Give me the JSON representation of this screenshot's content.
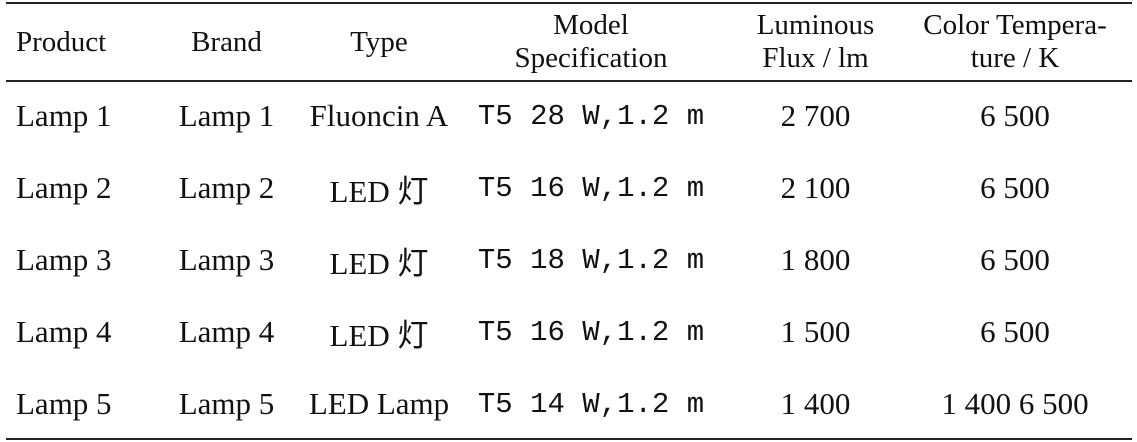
{
  "table": {
    "headers": {
      "product": "Product",
      "brand": "Brand",
      "type": "Type",
      "model_line1": "Model",
      "model_line2": "Specification",
      "flux_line1": "Luminous",
      "flux_line2": "Flux / lm",
      "temp_line1": "Color Tempera-",
      "temp_line2": "ture / K"
    },
    "rows": [
      {
        "product": "Lamp 1",
        "brand": "Lamp 1",
        "type": "Fluoncin A",
        "model": "T5 28 W,1.2 m",
        "flux": "2 700",
        "temp": "6 500"
      },
      {
        "product": "Lamp 2",
        "brand": "Lamp 2",
        "type": "LED 灯",
        "model": "T5 16 W,1.2 m",
        "flux": "2 100",
        "temp": "6 500"
      },
      {
        "product": "Lamp 3",
        "brand": "Lamp 3",
        "type": "LED 灯",
        "model": "T5 18 W,1.2 m",
        "flux": "1 800",
        "temp": "6 500"
      },
      {
        "product": "Lamp 4",
        "brand": "Lamp 4",
        "type": "LED 灯",
        "model": "T5 16 W,1.2 m",
        "flux": "1 500",
        "temp": "6 500"
      },
      {
        "product": "Lamp 5",
        "brand": "Lamp 5",
        "type": "LED Lamp",
        "model": "T5 14 W,1.2 m",
        "flux": "1 400",
        "temp": "1 400 6 500"
      }
    ]
  }
}
